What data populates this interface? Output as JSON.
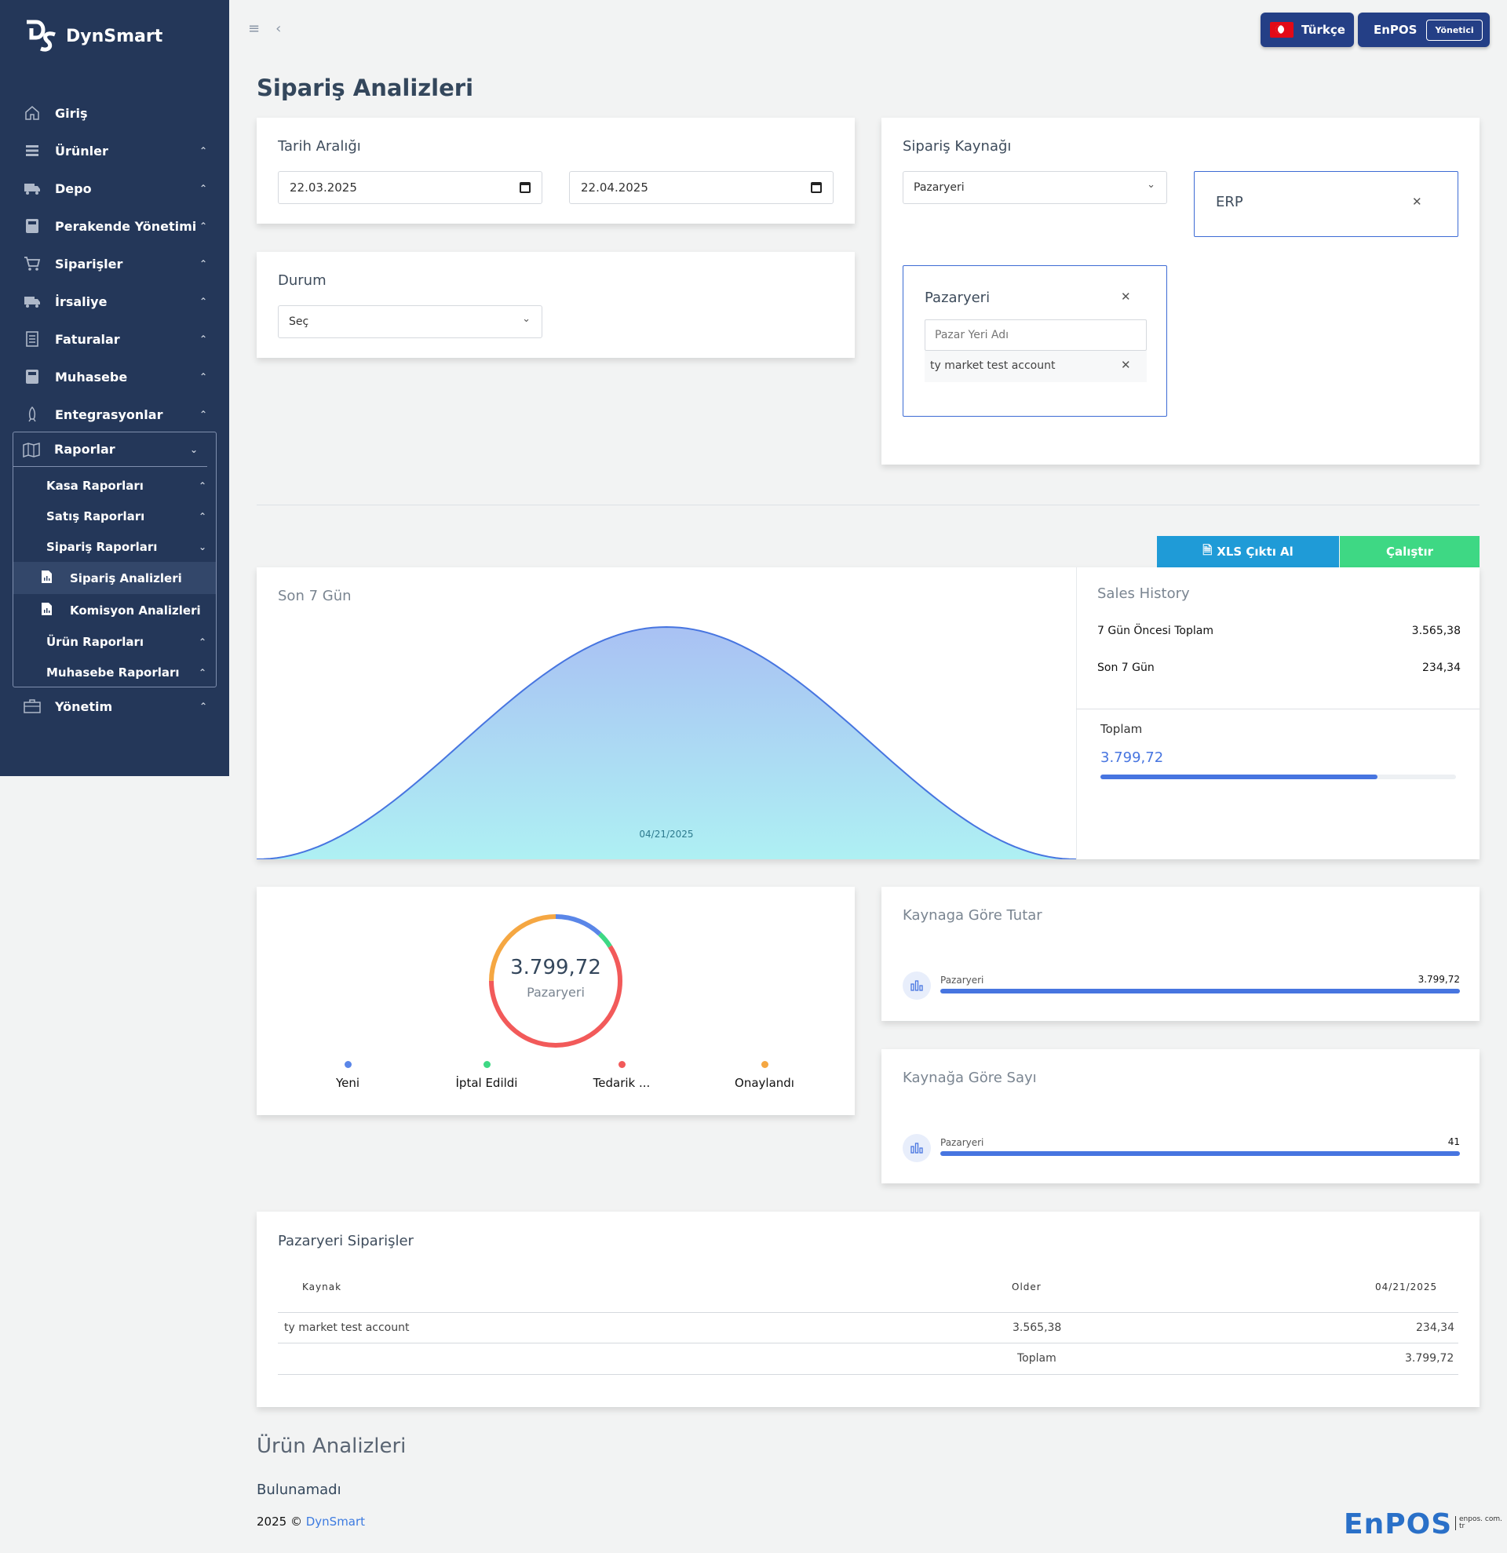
{
  "brand": {
    "name": "DynSmart"
  },
  "sidebar": {
    "items": [
      {
        "label": "Giriş",
        "icon": "home-icon",
        "chevron": ""
      },
      {
        "label": "Ürünler",
        "icon": "list-icon",
        "chevron": "⌃"
      },
      {
        "label": "Depo",
        "icon": "truck-icon",
        "chevron": "⌃"
      },
      {
        "label": "Perakende Yönetimi",
        "icon": "calculator-icon",
        "chevron": "⌃"
      },
      {
        "label": "Siparişler",
        "icon": "cart-icon",
        "chevron": "⌃"
      },
      {
        "label": "İrsaliye",
        "icon": "truck-icon",
        "chevron": "⌃"
      },
      {
        "label": "Faturalar",
        "icon": "document-icon",
        "chevron": "⌃"
      },
      {
        "label": "Muhasebe",
        "icon": "calculator-icon",
        "chevron": "⌃"
      },
      {
        "label": "Entegrasyonlar",
        "icon": "rocket-icon",
        "chevron": "⌃"
      }
    ],
    "raporlar": {
      "label": "Raporlar",
      "children": [
        {
          "label": "Kasa Raporları"
        },
        {
          "label": "Satış Raporları"
        },
        {
          "label": "Sipariş Raporları"
        }
      ],
      "siparis_children": [
        {
          "label": "Sipariş Analizleri",
          "active": true
        },
        {
          "label": "Komisyon Analizleri",
          "active": false
        }
      ],
      "more_children": [
        {
          "label": "Ürün Raporları"
        },
        {
          "label": "Muhasebe Raporları"
        }
      ]
    },
    "yonetim": {
      "label": "Yönetim"
    }
  },
  "header": {
    "language": "Türkçe",
    "user": "EnPOS",
    "role": "Yönetici"
  },
  "page": {
    "title": "Sipariş Analizleri"
  },
  "filters": {
    "date_range": {
      "title": "Tarih Aralığı",
      "start": "22.03.2025",
      "end": "22.04.2025"
    },
    "status": {
      "title": "Durum",
      "value": "Seç"
    },
    "source": {
      "title": "Sipariş Kaynağı",
      "select_value": "Pazaryeri",
      "erp_label": "ERP",
      "marketplace": {
        "title": "Pazaryeri",
        "placeholder": "Pazar Yeri Adı",
        "selected": "ty market test account"
      }
    }
  },
  "actions": {
    "xls": "XLS Çıktı Al",
    "run": "Çalıştır"
  },
  "last7": {
    "title": "Son 7 Gün",
    "x_label": "04/21/2025"
  },
  "chart_data": {
    "type": "area",
    "title": "Son 7 Gün",
    "x": [
      "04/21/2025"
    ],
    "series": [
      {
        "values": [
          234.34
        ]
      }
    ]
  },
  "sales_history": {
    "title": "Sales History",
    "rows": [
      {
        "label": "7 Gün Öncesi Toplam",
        "value": "3.565,38"
      },
      {
        "label": "Son 7 Gün",
        "value": "234,34"
      }
    ],
    "total_label": "Toplam",
    "total_value": "3.799,72",
    "progress": 0.78
  },
  "donut": {
    "value": "3.799,72",
    "label": "Pazaryeri",
    "legend": [
      {
        "label": "Yeni",
        "color": "#5a86e8"
      },
      {
        "label": "İptal Edildi",
        "color": "#3ed884"
      },
      {
        "label": "Tedarik ...",
        "color": "#f25a5a"
      },
      {
        "label": "Onaylandı",
        "color": "#f5a742"
      }
    ],
    "segments": [
      {
        "color": "#5a86e8",
        "fraction": 0.12
      },
      {
        "color": "#3ed884",
        "fraction": 0.04
      },
      {
        "color": "#f25a5a",
        "fraction": 0.59
      },
      {
        "color": "#f5a742",
        "fraction": 0.25
      }
    ]
  },
  "by_source_amount": {
    "title": "Kaynaga Göre Tutar",
    "rows": [
      {
        "label": "Pazaryeri",
        "value": "3.799,72"
      }
    ]
  },
  "by_source_count": {
    "title": "Kaynağa Göre Sayı",
    "rows": [
      {
        "label": "Pazaryeri",
        "value": "41"
      }
    ]
  },
  "orders_table": {
    "title": "Pazaryeri Siparişler",
    "headers": [
      "Kaynak",
      "Older",
      "04/21/2025"
    ],
    "rows": [
      [
        "ty market test account",
        "3.565,38",
        "234,34"
      ]
    ],
    "total_label": "Toplam",
    "total_value": "3.799,72"
  },
  "product_analysis": {
    "title": "Ürün Analizleri",
    "empty": "Bulunamadı"
  },
  "footer": {
    "year": "2025 ©",
    "link": "DynSmart",
    "brand": "EnPOS",
    "domain": "enpos. com. tr"
  }
}
